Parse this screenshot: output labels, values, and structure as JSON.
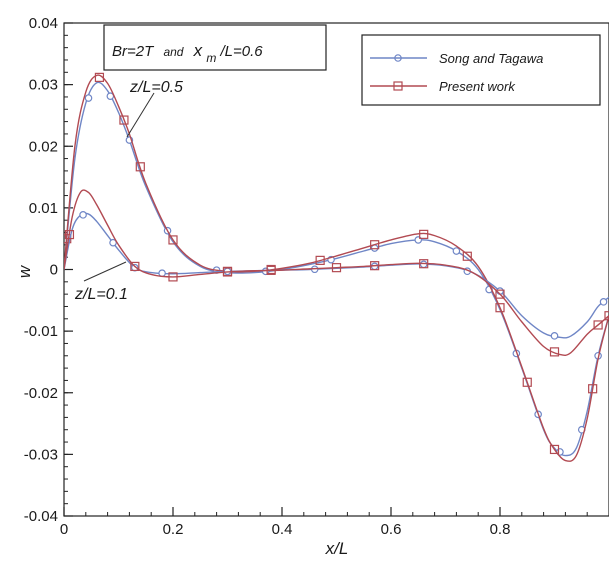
{
  "chart_data": {
    "type": "line",
    "xlabel": "x/L",
    "ylabel": "w",
    "xlim": [
      0,
      1.0
    ],
    "ylim": [
      -0.04,
      0.04
    ],
    "x_ticks": [
      0,
      0.2,
      0.4,
      0.6,
      0.8
    ],
    "x_tick_labels": [
      "0",
      "0.2",
      "0.4",
      "0.6",
      "0.8"
    ],
    "y_ticks": [
      0.04,
      0.03,
      0.02,
      0.01,
      0,
      -0.01,
      -0.02,
      -0.03,
      -0.04
    ],
    "y_tick_labels": [
      "0.04",
      "0.03",
      "0.02",
      "0.01",
      "0",
      "-0.01",
      "-0.02",
      "-0.03",
      "-0.04"
    ],
    "grid": false,
    "legend_position": "top-right",
    "parameter_box": {
      "part1": "Br=2T",
      "part2": "and",
      "part3": "x",
      "sub": "m",
      "part4": "/L=0.6"
    },
    "annotations": [
      {
        "text": "z/L=0.5",
        "points_to": "upper curves"
      },
      {
        "text": "z/L=0.1",
        "points_to": "lower curves"
      }
    ],
    "series": [
      {
        "name": "Song and Tagawa",
        "group": "z/L=0.5",
        "color": "#6f86c6",
        "marker": "circle",
        "x": [
          0,
          0.02,
          0.04,
          0.06,
          0.08,
          0.1,
          0.12,
          0.15,
          0.2,
          0.25,
          0.3,
          0.35,
          0.4,
          0.45,
          0.5,
          0.55,
          0.6,
          0.65,
          0.68,
          0.72,
          0.76,
          0.8,
          0.84,
          0.88,
          0.9,
          0.92,
          0.94,
          0.96,
          0.98,
          1.0
        ],
        "y": [
          0,
          0.018,
          0.027,
          0.0303,
          0.029,
          0.0255,
          0.021,
          0.0135,
          0.0045,
          0.0005,
          -0.0005,
          -0.0005,
          0.0,
          0.0008,
          0.0018,
          0.003,
          0.0042,
          0.0048,
          0.0045,
          0.003,
          0.0,
          -0.0065,
          -0.016,
          -0.026,
          -0.029,
          -0.0302,
          -0.029,
          -0.023,
          -0.014,
          -0.0075
        ],
        "marker_x": [
          0.045,
          0.085,
          0.12,
          0.19,
          0.28,
          0.37,
          0.49,
          0.57,
          0.65,
          0.72,
          0.78,
          0.83,
          0.87,
          0.91,
          0.95,
          0.98
        ]
      },
      {
        "name": "Present work",
        "group": "z/L=0.5",
        "color": "#b24a52",
        "marker": "square",
        "x": [
          0,
          0.02,
          0.04,
          0.06,
          0.08,
          0.1,
          0.12,
          0.15,
          0.2,
          0.25,
          0.3,
          0.35,
          0.4,
          0.45,
          0.5,
          0.55,
          0.6,
          0.65,
          0.68,
          0.72,
          0.76,
          0.8,
          0.84,
          0.88,
          0.9,
          0.92,
          0.94,
          0.96,
          0.98,
          1.0
        ],
        "y": [
          0,
          0.02,
          0.0288,
          0.0315,
          0.0302,
          0.0265,
          0.022,
          0.014,
          0.0048,
          0.0007,
          -0.0003,
          -0.0003,
          0.0002,
          0.001,
          0.0022,
          0.0035,
          0.0048,
          0.0058,
          0.0055,
          0.0038,
          0.0005,
          -0.0062,
          -0.0158,
          -0.0258,
          -0.0292,
          -0.031,
          -0.0302,
          -0.0242,
          -0.0145,
          -0.0075
        ],
        "marker_x": [
          0.005,
          0.065,
          0.11,
          0.14,
          0.2,
          0.3,
          0.38,
          0.47,
          0.57,
          0.66,
          0.74,
          0.8,
          0.85,
          0.9,
          0.97,
          1.0
        ]
      },
      {
        "name": "Song and Tagawa",
        "group": "z/L=0.1",
        "color": "#6f86c6",
        "marker": "circle",
        "x": [
          0,
          0.015,
          0.03,
          0.045,
          0.06,
          0.08,
          0.1,
          0.13,
          0.16,
          0.2,
          0.25,
          0.3,
          0.35,
          0.4,
          0.45,
          0.5,
          0.55,
          0.6,
          0.65,
          0.7,
          0.75,
          0.8,
          0.84,
          0.88,
          0.91,
          0.93,
          0.96,
          0.98,
          1.0
        ],
        "y": [
          0,
          0.0065,
          0.0088,
          0.009,
          0.0078,
          0.0055,
          0.0032,
          0.0003,
          -0.0005,
          -0.0007,
          -0.0005,
          -0.0003,
          -0.0002,
          -0.0001,
          0.0,
          0.0002,
          0.0004,
          0.0007,
          0.0009,
          0.0006,
          -0.0005,
          -0.0035,
          -0.0075,
          -0.0103,
          -0.011,
          -0.0108,
          -0.0085,
          -0.006,
          -0.0045
        ],
        "marker_x": [
          0.035,
          0.09,
          0.13,
          0.18,
          0.3,
          0.46,
          0.57,
          0.66,
          0.74,
          0.8,
          0.9,
          0.99
        ]
      },
      {
        "name": "Present work",
        "group": "z/L=0.1",
        "color": "#b24a52",
        "marker": "square",
        "x": [
          0,
          0.015,
          0.03,
          0.045,
          0.06,
          0.08,
          0.1,
          0.13,
          0.16,
          0.2,
          0.25,
          0.3,
          0.35,
          0.4,
          0.45,
          0.5,
          0.55,
          0.6,
          0.65,
          0.7,
          0.75,
          0.8,
          0.84,
          0.88,
          0.91,
          0.93,
          0.96,
          0.98,
          1.0
        ],
        "y": [
          0,
          0.0085,
          0.0125,
          0.0125,
          0.0105,
          0.0072,
          0.004,
          0.0005,
          -0.0008,
          -0.0012,
          -0.0008,
          -0.0004,
          -0.0002,
          -0.0001,
          0.0001,
          0.0003,
          0.0005,
          0.0008,
          0.001,
          0.0007,
          -0.0005,
          -0.004,
          -0.0085,
          -0.0125,
          -0.0138,
          -0.0135,
          -0.0105,
          -0.009,
          -0.0075
        ],
        "marker_x": [
          0.01,
          0.13,
          0.2,
          0.3,
          0.38,
          0.5,
          0.57,
          0.66,
          0.8,
          0.9,
          0.98
        ]
      }
    ]
  }
}
